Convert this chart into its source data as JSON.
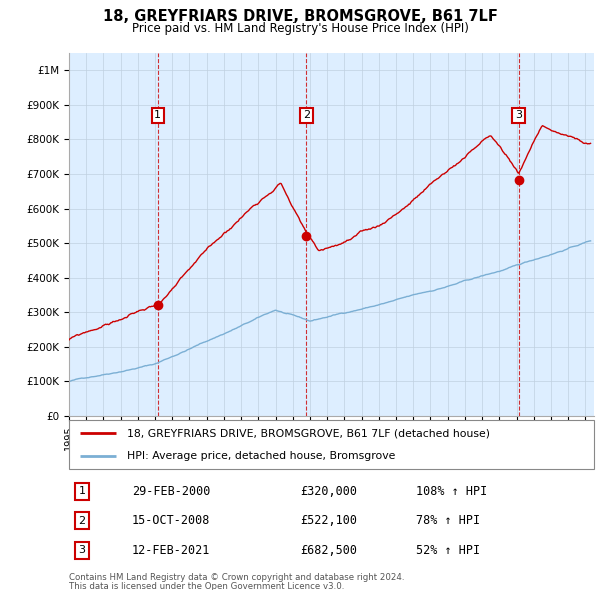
{
  "title": "18, GREYFRIARS DRIVE, BROMSGROVE, B61 7LF",
  "subtitle": "Price paid vs. HM Land Registry's House Price Index (HPI)",
  "ylim": [
    0,
    1050000
  ],
  "yticks": [
    0,
    100000,
    200000,
    300000,
    400000,
    500000,
    600000,
    700000,
    800000,
    900000,
    1000000
  ],
  "ytick_labels": [
    "£0",
    "£100K",
    "£200K",
    "£300K",
    "£400K",
    "£500K",
    "£600K",
    "£700K",
    "£800K",
    "£900K",
    "£1M"
  ],
  "xlim_start": 1995.0,
  "xlim_end": 2025.5,
  "sale_dates": [
    2000.16,
    2008.79,
    2021.12
  ],
  "sale_prices": [
    320000,
    522100,
    682500
  ],
  "sale_labels": [
    "1",
    "2",
    "3"
  ],
  "sale_date_strings": [
    "29-FEB-2000",
    "15-OCT-2008",
    "12-FEB-2021"
  ],
  "sale_price_strings": [
    "£320,000",
    "£522,100",
    "£682,500"
  ],
  "sale_hpi_strings": [
    "108% ↑ HPI",
    "78% ↑ HPI",
    "52% ↑ HPI"
  ],
  "red_color": "#cc0000",
  "blue_color": "#7bafd4",
  "chart_bg": "#ddeeff",
  "dashed_color": "#cc0000",
  "legend_label_red": "18, GREYFRIARS DRIVE, BROMSGROVE, B61 7LF (detached house)",
  "legend_label_blue": "HPI: Average price, detached house, Bromsgrove",
  "footnote1": "Contains HM Land Registry data © Crown copyright and database right 2024.",
  "footnote2": "This data is licensed under the Open Government Licence v3.0.",
  "grid_color": "#c0d0e0"
}
